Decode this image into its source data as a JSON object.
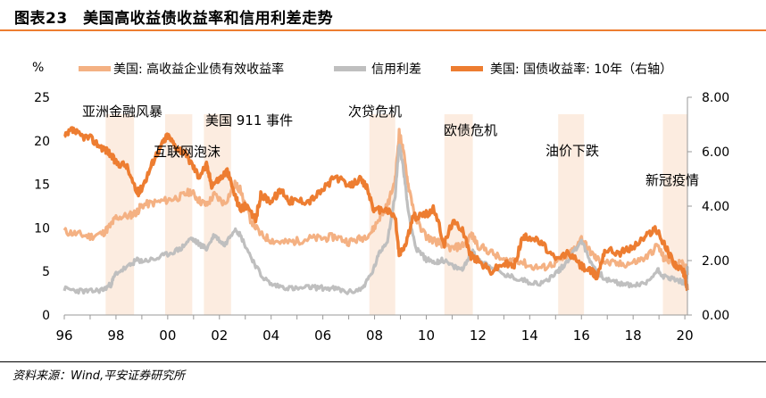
{
  "title": "图表23　美国高收益债收益率和信用利差走势",
  "source": "资料来源：Wind,平安证券研究所",
  "chart_data": {
    "type": "line",
    "y_left_label": "%",
    "y_left_ticks": [
      "0",
      "5",
      "10",
      "15",
      "20",
      "25"
    ],
    "y_left_lim": [
      0,
      25
    ],
    "y_right_ticks": [
      "0.00",
      "2.00",
      "4.00",
      "6.00",
      "8.00"
    ],
    "y_right_lim": [
      0,
      8
    ],
    "x_ticks": [
      "96",
      "98",
      "00",
      "02",
      "04",
      "06",
      "08",
      "10",
      "12",
      "14",
      "16",
      "18",
      "20"
    ],
    "x_lim": [
      1996.0,
      2020.1
    ],
    "legend": [
      "美国: 高收益企业债有效收益率",
      "信用利差",
      "美国: 国债收益率: 10年（右轴）"
    ],
    "colors": {
      "high_yield": "#F4B183",
      "spread": "#BFBFBF",
      "treasury": "#ED7D31",
      "shade": "#FBE5D6"
    },
    "shaded_periods": [
      {
        "label": "亚洲金融风暴",
        "start": 1997.6,
        "end": 1998.7
      },
      {
        "label": "互联网泡沫",
        "start": 1999.9,
        "end": 2000.95
      },
      {
        "label": "美国 911 事件",
        "start": 2001.4,
        "end": 2002.45
      },
      {
        "label": "次贷危机",
        "start": 2007.8,
        "end": 2008.8
      },
      {
        "label": "欧债危机",
        "start": 2010.7,
        "end": 2011.8
      },
      {
        "label": "油价下跌",
        "start": 2015.1,
        "end": 2016.1
      },
      {
        "label": "新冠疫情",
        "start": 2019.15,
        "end": 2020.1
      }
    ],
    "series": [
      {
        "name": "美国: 高收益企业债有效收益率",
        "axis": "left",
        "x": [
          1996.0,
          1996.5,
          1997.0,
          1997.5,
          1997.8,
          1998.0,
          1998.5,
          1998.8,
          1999.0,
          1999.5,
          2000.0,
          2000.5,
          2000.9,
          2001.2,
          2001.5,
          2001.8,
          2002.2,
          2002.6,
          2002.8,
          2003.2,
          2003.6,
          2004.0,
          2004.5,
          2005.0,
          2005.5,
          2006.0,
          2006.5,
          2007.0,
          2007.5,
          2007.9,
          2008.2,
          2008.5,
          2008.8,
          2008.95,
          2009.1,
          2009.3,
          2009.6,
          2010.0,
          2010.4,
          2010.6,
          2011.0,
          2011.4,
          2011.75,
          2012.0,
          2012.5,
          2013.0,
          2013.5,
          2014.0,
          2014.5,
          2015.0,
          2015.3,
          2015.6,
          2016.0,
          2016.3,
          2016.6,
          2017.0,
          2017.5,
          2018.0,
          2018.5,
          2018.95,
          2019.2,
          2019.5,
          2019.9,
          2020.05,
          2020.1
        ],
        "values": [
          9.6,
          9.3,
          9.0,
          9.4,
          10.3,
          11.2,
          11.4,
          11.8,
          12.6,
          12.9,
          13.2,
          13.6,
          14.2,
          13.2,
          12.6,
          13.8,
          12.8,
          15.0,
          14.4,
          11.0,
          9.2,
          8.6,
          8.3,
          8.5,
          8.8,
          8.8,
          9.0,
          8.4,
          8.8,
          9.6,
          11.2,
          12.6,
          15.5,
          21.0,
          19.0,
          15.0,
          11.0,
          9.0,
          8.4,
          8.2,
          7.6,
          8.0,
          9.2,
          8.0,
          7.2,
          6.2,
          6.4,
          5.6,
          5.4,
          6.0,
          6.6,
          7.2,
          8.8,
          7.4,
          6.4,
          6.0,
          5.8,
          6.0,
          6.6,
          8.0,
          6.4,
          6.2,
          5.8,
          5.4,
          4.6
        ]
      },
      {
        "name": "信用利差",
        "axis": "left",
        "x": [
          1996.0,
          1996.5,
          1997.0,
          1997.5,
          1997.8,
          1998.0,
          1998.5,
          1998.8,
          1999.0,
          1999.5,
          2000.0,
          2000.5,
          2000.9,
          2001.2,
          2001.5,
          2001.8,
          2002.2,
          2002.6,
          2002.8,
          2003.2,
          2003.6,
          2004.0,
          2004.5,
          2005.0,
          2005.5,
          2006.0,
          2006.5,
          2007.0,
          2007.5,
          2007.9,
          2008.2,
          2008.5,
          2008.8,
          2008.95,
          2009.1,
          2009.3,
          2009.6,
          2010.0,
          2010.4,
          2010.6,
          2011.0,
          2011.4,
          2011.75,
          2012.0,
          2012.5,
          2013.0,
          2013.5,
          2014.0,
          2014.5,
          2015.0,
          2015.3,
          2015.6,
          2016.0,
          2016.3,
          2016.6,
          2017.0,
          2017.5,
          2018.0,
          2018.5,
          2018.95,
          2019.2,
          2019.5,
          2019.9,
          2020.05,
          2020.1
        ],
        "values": [
          3.0,
          2.8,
          2.7,
          2.9,
          3.5,
          4.8,
          5.6,
          6.3,
          6.2,
          6.4,
          7.0,
          7.6,
          8.8,
          8.2,
          7.6,
          9.2,
          8.0,
          10.0,
          9.2,
          6.8,
          4.6,
          3.5,
          3.2,
          3.0,
          3.2,
          3.1,
          3.0,
          2.6,
          3.0,
          4.8,
          7.2,
          8.6,
          13.8,
          19.6,
          17.2,
          12.0,
          7.6,
          6.4,
          6.0,
          6.4,
          5.6,
          5.2,
          7.4,
          6.4,
          5.6,
          4.6,
          4.2,
          3.8,
          3.6,
          4.8,
          5.6,
          6.8,
          8.6,
          6.4,
          5.0,
          4.0,
          3.6,
          3.4,
          3.6,
          5.2,
          4.4,
          4.2,
          3.8,
          3.4,
          5.4
        ]
      },
      {
        "name": "美国: 国债收益率: 10年（右轴）",
        "axis": "right",
        "x": [
          1996.0,
          1996.3,
          1996.6,
          1997.0,
          1997.4,
          1997.7,
          1998.0,
          1998.4,
          1998.75,
          1998.9,
          1999.2,
          1999.5,
          1999.8,
          2000.0,
          2000.3,
          2000.6,
          2000.9,
          2001.2,
          2001.5,
          2001.7,
          2002.0,
          2002.3,
          2002.6,
          2002.8,
          2003.0,
          2003.4,
          2003.6,
          2004.0,
          2004.4,
          2004.7,
          2005.0,
          2005.5,
          2006.0,
          2006.5,
          2007.0,
          2007.4,
          2007.7,
          2008.0,
          2008.4,
          2008.8,
          2008.95,
          2009.2,
          2009.5,
          2010.0,
          2010.3,
          2010.7,
          2011.0,
          2011.4,
          2011.7,
          2012.0,
          2012.5,
          2013.0,
          2013.4,
          2013.7,
          2014.0,
          2014.5,
          2015.0,
          2015.5,
          2016.0,
          2016.4,
          2016.6,
          2016.9,
          2017.5,
          2018.0,
          2018.5,
          2018.85,
          2019.2,
          2019.6,
          2019.9,
          2020.0,
          2020.1
        ],
        "values": [
          6.5,
          6.8,
          6.6,
          6.5,
          6.2,
          6.0,
          5.6,
          5.5,
          4.6,
          4.5,
          5.1,
          5.8,
          6.3,
          6.6,
          6.2,
          6.0,
          5.6,
          5.1,
          5.5,
          4.8,
          5.0,
          5.3,
          4.4,
          3.9,
          4.0,
          3.5,
          4.4,
          4.2,
          4.6,
          4.2,
          4.2,
          4.2,
          4.6,
          5.1,
          4.7,
          5.0,
          4.7,
          3.8,
          3.9,
          3.6,
          2.2,
          2.6,
          3.6,
          3.7,
          3.9,
          2.6,
          3.4,
          3.2,
          2.2,
          2.0,
          1.6,
          1.9,
          1.8,
          2.8,
          2.9,
          2.6,
          2.0,
          2.3,
          1.8,
          1.6,
          1.4,
          2.4,
          2.3,
          2.5,
          2.9,
          3.2,
          2.6,
          1.9,
          1.6,
          1.5,
          0.9
        ]
      }
    ]
  }
}
